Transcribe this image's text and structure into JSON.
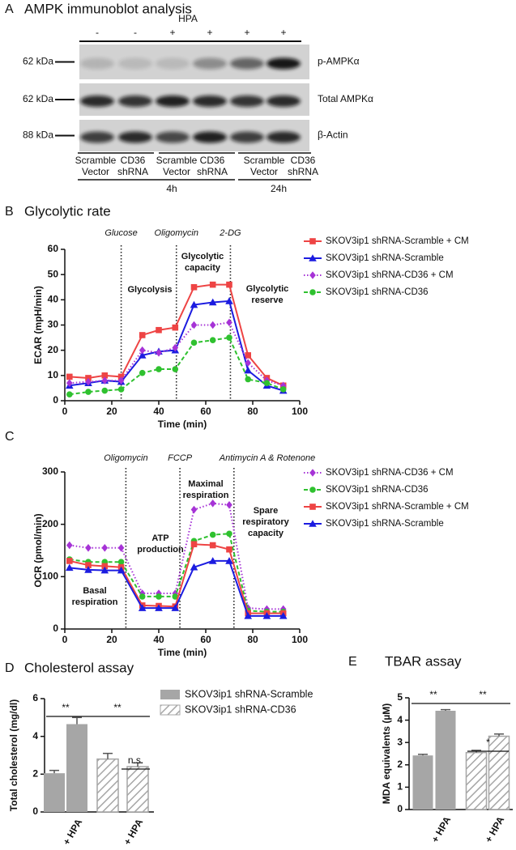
{
  "blot": {
    "panel": "A",
    "title": "AMPK immunoblot analysis",
    "treatment": "HPA",
    "treatment_signs": [
      "-",
      "-",
      "+",
      "+",
      "+",
      "+"
    ],
    "rows": [
      {
        "size": "62 kDa",
        "protein": "p-AMPKα"
      },
      {
        "size": "62 kDa",
        "protein": "Total AMPKα"
      },
      {
        "size": "88 kDa",
        "protein": "β-Actin"
      }
    ],
    "lanes": [
      [
        "Scramble",
        "Vector"
      ],
      [
        "CD36",
        "shRNA"
      ],
      [
        "Scramble",
        "Vector"
      ],
      [
        "CD36",
        "shRNA"
      ],
      [
        "Scramble",
        "Vector"
      ],
      [
        "CD36",
        "shRNA"
      ]
    ],
    "times": [
      "4h",
      "24h"
    ]
  },
  "chart_data": [
    {
      "type": "line",
      "panel": "B",
      "title": "Glycolytic rate",
      "x_label": "Time (min)",
      "y_label": "ECAR (mpH/min)",
      "x": [
        2,
        10,
        17,
        24,
        33,
        40,
        47,
        55,
        63,
        70,
        78,
        86,
        93
      ],
      "series": [
        {
          "name": "SKOV3ip1 shRNA-Scramble + CM",
          "color": "#ee4444",
          "marker": "square",
          "linestyle": "solid",
          "values": [
            9.5,
            9,
            10,
            9.5,
            26,
            28,
            29,
            45,
            46,
            46,
            18,
            9,
            6
          ]
        },
        {
          "name": "SKOV3ip1 shRNA-Scramble",
          "color": "#1c1ce0",
          "marker": "triangle",
          "linestyle": "solid",
          "values": [
            6,
            7,
            8,
            7.5,
            18,
            19.5,
            20,
            38,
            39,
            39.5,
            12,
            6,
            4
          ]
        },
        {
          "name": "SKOV3ip1 shRNA-CD36 + CM",
          "color": "#a633d6",
          "marker": "diamond",
          "linestyle": "dotted",
          "values": [
            7,
            7.5,
            8,
            8,
            20,
            19,
            21,
            30,
            30,
            31,
            15,
            8,
            6
          ]
        },
        {
          "name": "SKOV3ip1 shRNA-CD36",
          "color": "#2fc12f",
          "marker": "circle",
          "linestyle": "dashed",
          "values": [
            2.5,
            3.5,
            4,
            4.5,
            11,
            12.5,
            12.5,
            23,
            24,
            25,
            8.5,
            7,
            4.5
          ]
        }
      ],
      "xlim": [
        0,
        100
      ],
      "xticks": [
        0,
        20,
        40,
        60,
        80,
        100
      ],
      "ylim": [
        0,
        60
      ],
      "yticks": [
        0,
        10,
        20,
        30,
        40,
        50,
        60
      ],
      "injections": [
        {
          "label": "Glucose",
          "x": 24
        },
        {
          "label": "Oligomycin",
          "x": 47.5
        },
        {
          "label": "2-DG",
          "x": 70.5
        }
      ],
      "phases": [
        [
          "Glycolysis"
        ],
        [
          "Glycolytic",
          "capacity"
        ],
        [
          "Glycolytic",
          "reserve"
        ]
      ],
      "legend": "right"
    },
    {
      "type": "line",
      "panel": "C",
      "x_label": "Time (min)",
      "y_label": "OCR (pmol/min)",
      "x": [
        2,
        10,
        17,
        24,
        33,
        40,
        47,
        55,
        63,
        70,
        78,
        86,
        93
      ],
      "series": [
        {
          "name": "SKOV3ip1 shRNA-CD36 + CM",
          "color": "#a633d6",
          "marker": "diamond",
          "linestyle": "dotted",
          "values": [
            160,
            155,
            155,
            155,
            68,
            68,
            68,
            228,
            240,
            237,
            40,
            38,
            38
          ]
        },
        {
          "name": "SKOV3ip1 shRNA-CD36",
          "color": "#2fc12f",
          "marker": "circle",
          "linestyle": "dashed",
          "values": [
            133,
            128,
            128,
            128,
            62,
            62,
            62,
            168,
            180,
            182,
            35,
            33,
            33
          ]
        },
        {
          "name": "SKOV3ip1 shRNA-Scramble + CM",
          "color": "#ee4444",
          "marker": "square",
          "linestyle": "solid",
          "values": [
            130,
            122,
            120,
            118,
            45,
            44,
            43,
            162,
            160,
            152,
            30,
            30,
            30
          ]
        },
        {
          "name": "SKOV3ip1 shRNA-Scramble",
          "color": "#1c1ce0",
          "marker": "triangle",
          "linestyle": "solid",
          "values": [
            117,
            113,
            112,
            112,
            40,
            40,
            40,
            118,
            130,
            130,
            25,
            25,
            25
          ]
        }
      ],
      "xlim": [
        0,
        100
      ],
      "xticks": [
        0,
        20,
        40,
        60,
        80,
        100
      ],
      "ylim": [
        0,
        300
      ],
      "yticks": [
        0,
        100,
        200,
        300
      ],
      "injections": [
        {
          "label": "Oligomycin",
          "x": 26
        },
        {
          "label": "FCCP",
          "x": 49
        },
        {
          "label": "Antimycin A & Rotenone",
          "x": 72
        }
      ],
      "phases": [
        [
          "Basal",
          "respiration"
        ],
        [
          "ATP",
          "production"
        ],
        [
          "Maximal",
          "respiration"
        ],
        [
          "Spare",
          "respiratory",
          "capacity"
        ]
      ],
      "legend": "right"
    },
    {
      "type": "bar",
      "panel": "D",
      "title": "Cholesterol assay",
      "y_label": "Total cholesterol (mg/dl)",
      "categories": [
        null,
        "+ HPA",
        null,
        "+ HPA"
      ],
      "series": [
        {
          "name": "SKOV3ip1 shRNA-Scramble",
          "color": "#a6a6a6",
          "pattern": "solid",
          "values": [
            2.05,
            4.65,
            null,
            null
          ],
          "errors": [
            0.15,
            0.35,
            null,
            null
          ]
        },
        {
          "name": "SKOV3ip1 shRNA-CD36",
          "color": "#a6a6a6",
          "pattern": "hatch",
          "values": [
            null,
            null,
            2.8,
            2.4
          ],
          "errors": [
            null,
            null,
            0.3,
            0.2
          ]
        }
      ],
      "ylim": [
        0,
        6
      ],
      "yticks": [
        0,
        2,
        4,
        6
      ],
      "significance": [
        "**",
        "**",
        "n.s."
      ],
      "legend": "right"
    },
    {
      "type": "bar",
      "panel": "E",
      "title": "TBAR assay",
      "y_label": "MDA equivalents (µM)",
      "categories": [
        null,
        "+ HPA",
        null,
        "+ HPA"
      ],
      "series": [
        {
          "color": "#a6a6a6",
          "pattern": "solid",
          "values": [
            2.42,
            4.42,
            null,
            null
          ],
          "errors": [
            0.05,
            0.05,
            null,
            null
          ]
        },
        {
          "color": "#a6a6a6",
          "pattern": "hatch",
          "values": [
            null,
            null,
            2.55,
            3.28
          ],
          "errors": [
            null,
            null,
            0.1,
            0.1
          ]
        }
      ],
      "ylim": [
        0,
        5
      ],
      "yticks": [
        0,
        1,
        2,
        3,
        4,
        5
      ],
      "significance": [
        "**",
        "**",
        "*"
      ]
    }
  ]
}
